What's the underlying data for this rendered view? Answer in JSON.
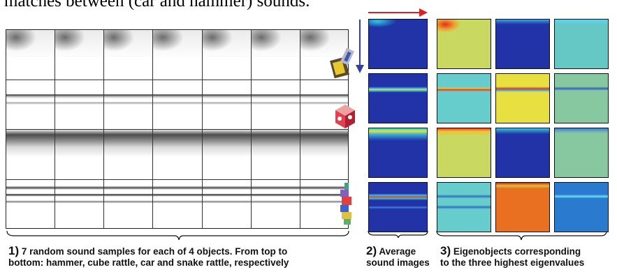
{
  "intro_text": "matches between (car and hammer) sounds.",
  "figure": {
    "panel1": {
      "objects": [
        {
          "name": "hammer",
          "icon": "hammer-toy-icon"
        },
        {
          "name": "cube rattle",
          "icon": "cube-rattle-icon"
        },
        {
          "name": "car",
          "icon": "toy-car-icon"
        },
        {
          "name": "snake rattle",
          "icon": "snake-rattle-icon"
        }
      ],
      "samples_per_object": 7
    },
    "captions": {
      "c1_number": "1)",
      "c1_line1": "7 random sound samples for each of 4 objects. From top to",
      "c1_line2": "bottom: hammer, cube rattle, car and snake rattle, respectively",
      "c2_number": "2)",
      "c2_line1": "Average",
      "c2_line2": "sound images",
      "c3_number": "3)",
      "c3_line1": "Eigenobjects corresponding",
      "c3_line2": "to the three highest eigenvalues"
    },
    "colors": {
      "deep_blue": "#2233a8",
      "cyan": "#66cccc",
      "yellow_green": "#c8d860",
      "yellow": "#e8e040",
      "orange": "#e87020",
      "light_green": "#88c8a0",
      "red_arrow": "#e02020",
      "blue_arrow": "#3040a0"
    },
    "eigen_backgrounds": [
      [
        "#c8d860",
        "#2233a8",
        "#66c8c4"
      ],
      [
        "#66cccc",
        "#e8e040",
        "#88c8a0"
      ],
      [
        "#c8d860",
        "#2233a8",
        "#88c8a0"
      ],
      [
        "#66cccc",
        "#e87020",
        "#2a7ad0"
      ]
    ]
  }
}
